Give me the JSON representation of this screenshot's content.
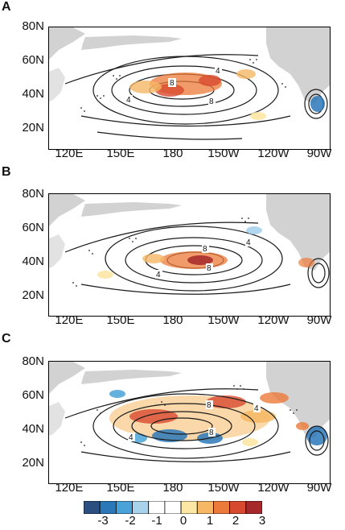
{
  "panels": [
    {
      "letter": "A",
      "contours": [
        {
          "label": "4"
        },
        {
          "label": "8"
        },
        {
          "label": "8"
        },
        {
          "label": "4"
        }
      ]
    },
    {
      "letter": "B",
      "contours": [
        {
          "label": "4"
        },
        {
          "label": "8"
        },
        {
          "label": "8"
        },
        {
          "label": "4"
        }
      ]
    },
    {
      "letter": "C",
      "contours": [
        {
          "label": "4"
        },
        {
          "label": "8"
        },
        {
          "label": "8"
        },
        {
          "label": "4"
        }
      ]
    }
  ],
  "lat_ticks": [
    "80N",
    "60N",
    "40N",
    "20N"
  ],
  "lon_ticks": [
    "120E",
    "150E",
    "180",
    "150W",
    "120W",
    "90W"
  ],
  "colorbar": {
    "ticks": [
      "-3",
      "-2",
      "-1",
      "0",
      "1",
      "2",
      "3"
    ],
    "colors": [
      "#2b4f80",
      "#2a78b8",
      "#4aa3d8",
      "#a9d3ec",
      "#ffffff",
      "#ffffff",
      "#fde7a4",
      "#f6b865",
      "#ec7a3a",
      "#d84a2f",
      "#a6282a"
    ]
  },
  "colors": {
    "land": "#d2d2d2",
    "contour": "#1a1a1a"
  },
  "chart_data": {
    "type": "heatmap",
    "panels": [
      "A",
      "B",
      "C"
    ],
    "xlabel": "",
    "ylabel": "",
    "x_ticks": [
      "120E",
      "150E",
      "180",
      "150W",
      "120W",
      "90W"
    ],
    "y_ticks": [
      "80N",
      "60N",
      "40N",
      "20N"
    ],
    "color_scale": {
      "min": -3,
      "max": 3,
      "ticks": [
        -3,
        -2,
        -1,
        0,
        1,
        2,
        3
      ]
    },
    "contour_labels": [
      4,
      8
    ]
  }
}
